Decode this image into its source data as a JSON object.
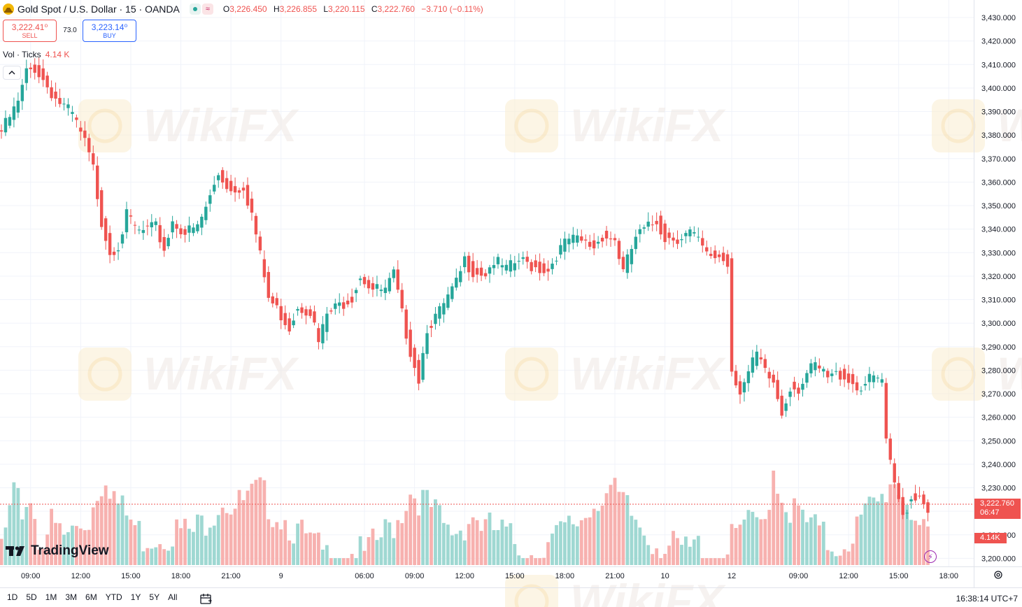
{
  "header": {
    "title": "Gold Spot / U.S. Dollar · 15 · OANDA",
    "ohlc": [
      {
        "key": "O",
        "value": "3,226.450"
      },
      {
        "key": "H",
        "value": "3,226.855"
      },
      {
        "key": "L",
        "value": "3,220.115"
      },
      {
        "key": "C",
        "value": "3,222.760"
      }
    ],
    "change": "−3.710 (−0.11%)"
  },
  "trade": {
    "sell_price": "3,222.41⁰",
    "sell_label": "SELL",
    "buy_price": "3,223.14⁰",
    "buy_label": "BUY",
    "spread": "73.0"
  },
  "volume_legend": {
    "label": "Vol · Ticks",
    "value": "4.14 K"
  },
  "watermark": "WikiFX",
  "logo_text": "TradingView",
  "price_tag": {
    "price": "3,222.760",
    "countdown": "06:47"
  },
  "volume_tag": "4.14K",
  "range_buttons": [
    "1D",
    "5D",
    "1M",
    "3M",
    "6M",
    "YTD",
    "1Y",
    "5Y",
    "All"
  ],
  "clock": "16:38:14 UTC+7",
  "colors": {
    "up": "#26a69a",
    "down": "#ef5350",
    "up_vol": "#9fd8d2",
    "down_vol": "#f7b1af",
    "grid": "#f0f3fa"
  },
  "chart_data": {
    "type": "candlestick",
    "title": "Gold Spot / U.S. Dollar · 15 · OANDA",
    "y_axis": {
      "range": [
        3195,
        3435
      ],
      "ticks": [
        "3,430.000",
        "3,420.000",
        "3,410.000",
        "3,400.000",
        "3,390.000",
        "3,380.000",
        "3,370.000",
        "3,360.000",
        "3,350.000",
        "3,340.000",
        "3,330.000",
        "3,320.000",
        "3,310.000",
        "3,300.000",
        "3,290.000",
        "3,280.000",
        "3,270.000",
        "3,260.000",
        "3,250.000",
        "3,240.000",
        "3,230.000",
        "3,220.000",
        "3,210.000",
        "3,200.000"
      ]
    },
    "x_axis": {
      "ticks": [
        {
          "label": "09:00",
          "bar": 7
        },
        {
          "label": "12:00",
          "bar": 19
        },
        {
          "label": "15:00",
          "bar": 31
        },
        {
          "label": "18:00",
          "bar": 43
        },
        {
          "label": "21:00",
          "bar": 55
        },
        {
          "label": "9",
          "bar": 67
        },
        {
          "label": "06:00",
          "bar": 87
        },
        {
          "label": "09:00",
          "bar": 99
        },
        {
          "label": "12:00",
          "bar": 111
        },
        {
          "label": "15:00",
          "bar": 123
        },
        {
          "label": "18:00",
          "bar": 135
        },
        {
          "label": "21:00",
          "bar": 147
        },
        {
          "label": "10",
          "bar": 159
        },
        {
          "label": "12",
          "bar": 175
        },
        {
          "label": "09:00",
          "bar": 191
        },
        {
          "label": "12:00",
          "bar": 203
        },
        {
          "label": "15:00",
          "bar": 215
        },
        {
          "label": "18:00",
          "bar": 227
        }
      ]
    },
    "close_keypoints": [
      [
        0,
        3383
      ],
      [
        4,
        3395
      ],
      [
        6,
        3408
      ],
      [
        8,
        3410
      ],
      [
        10,
        3405
      ],
      [
        13,
        3397
      ],
      [
        17,
        3390
      ],
      [
        20,
        3378
      ],
      [
        22,
        3367
      ],
      [
        24,
        3345
      ],
      [
        26,
        3332
      ],
      [
        28,
        3335
      ],
      [
        30,
        3347
      ],
      [
        33,
        3340
      ],
      [
        37,
        3342
      ],
      [
        39,
        3333
      ],
      [
        41,
        3345
      ],
      [
        44,
        3340
      ],
      [
        47,
        3342
      ],
      [
        50,
        3355
      ],
      [
        52,
        3365
      ],
      [
        55,
        3358
      ],
      [
        58,
        3360
      ],
      [
        60,
        3348
      ],
      [
        62,
        3330
      ],
      [
        64,
        3312
      ],
      [
        67,
        3305
      ],
      [
        69,
        3300
      ],
      [
        71,
        3309
      ],
      [
        74,
        3307
      ],
      [
        76,
        3293
      ],
      [
        78,
        3305
      ],
      [
        81,
        3309
      ],
      [
        84,
        3313
      ],
      [
        86,
        3322
      ],
      [
        89,
        3316
      ],
      [
        92,
        3315
      ],
      [
        94,
        3322
      ],
      [
        96,
        3305
      ],
      [
        98,
        3290
      ],
      [
        100,
        3278
      ],
      [
        102,
        3300
      ],
      [
        105,
        3306
      ],
      [
        107,
        3312
      ],
      [
        109,
        3318
      ],
      [
        111,
        3328
      ],
      [
        113,
        3324
      ],
      [
        116,
        3323
      ],
      [
        118,
        3328
      ],
      [
        121,
        3324
      ],
      [
        124,
        3328
      ],
      [
        127,
        3326
      ],
      [
        131,
        3324
      ],
      [
        133,
        3331
      ],
      [
        136,
        3337
      ],
      [
        139,
        3336
      ],
      [
        142,
        3334
      ],
      [
        144,
        3339
      ],
      [
        147,
        3337
      ],
      [
        149,
        3323
      ],
      [
        152,
        3338
      ],
      [
        155,
        3342
      ],
      [
        157,
        3345
      ],
      [
        159,
        3338
      ],
      [
        162,
        3338
      ],
      [
        165,
        3340
      ],
      [
        167,
        3336
      ],
      [
        169,
        3330
      ],
      [
        172,
        3330
      ],
      [
        174,
        3327
      ],
      [
        175,
        3282
      ],
      [
        177,
        3273
      ],
      [
        179,
        3280
      ],
      [
        181,
        3288
      ],
      [
        183,
        3280
      ],
      [
        185,
        3276
      ],
      [
        187,
        3263
      ],
      [
        189,
        3275
      ],
      [
        191,
        3274
      ],
      [
        193,
        3280
      ],
      [
        195,
        3283
      ],
      [
        198,
        3278
      ],
      [
        201,
        3280
      ],
      [
        203,
        3278
      ],
      [
        205,
        3274
      ],
      [
        207,
        3276
      ],
      [
        209,
        3278
      ],
      [
        211,
        3277
      ],
      [
        212,
        3250
      ],
      [
        214,
        3232
      ],
      [
        216,
        3220
      ],
      [
        218,
        3227
      ],
      [
        220,
        3229
      ],
      [
        222,
        3223
      ]
    ],
    "volume_keypoints": [
      [
        0,
        1.2
      ],
      [
        3,
        3.2
      ],
      [
        5,
        2.8
      ],
      [
        7,
        3.4
      ],
      [
        9,
        1.5
      ],
      [
        12,
        2.2
      ],
      [
        15,
        1.6
      ],
      [
        18,
        2.0
      ],
      [
        21,
        2.4
      ],
      [
        23,
        3.6
      ],
      [
        25,
        4.4
      ],
      [
        28,
        3.0
      ],
      [
        31,
        2.3
      ],
      [
        34,
        1.6
      ],
      [
        38,
        1.7
      ],
      [
        42,
        1.9
      ],
      [
        46,
        1.8
      ],
      [
        50,
        2.6
      ],
      [
        53,
        3.3
      ],
      [
        56,
        2.9
      ],
      [
        59,
        3.2
      ],
      [
        62,
        3.6
      ],
      [
        65,
        2.8
      ],
      [
        68,
        2.4
      ],
      [
        71,
        1.8
      ],
      [
        75,
        1.2
      ],
      [
        79,
        0.6
      ],
      [
        83,
        1.0
      ],
      [
        87,
        0.8
      ],
      [
        91,
        1.6
      ],
      [
        95,
        2.4
      ],
      [
        98,
        3.6
      ],
      [
        101,
        3.2
      ],
      [
        104,
        2.6
      ],
      [
        107,
        1.8
      ],
      [
        110,
        2.0
      ],
      [
        113,
        2.6
      ],
      [
        116,
        2.0
      ],
      [
        120,
        1.8
      ],
      [
        124,
        1.2
      ],
      [
        128,
        0.8
      ],
      [
        132,
        1.4
      ],
      [
        136,
        2.0
      ],
      [
        140,
        2.6
      ],
      [
        143,
        3.4
      ],
      [
        146,
        3.6
      ],
      [
        149,
        3.0
      ],
      [
        152,
        2.3
      ],
      [
        155,
        1.7
      ],
      [
        158,
        1.3
      ],
      [
        161,
        1.1
      ],
      [
        164,
        1.0
      ],
      [
        167,
        1.2
      ],
      [
        170,
        0.8
      ],
      [
        173,
        0.5
      ],
      [
        175,
        1.4
      ],
      [
        178,
        2.2
      ],
      [
        181,
        2.0
      ],
      [
        183,
        2.4
      ],
      [
        185,
        4.6
      ],
      [
        187,
        3.4
      ],
      [
        189,
        2.8
      ],
      [
        191,
        2.6
      ],
      [
        193,
        2.2
      ],
      [
        196,
        1.8
      ],
      [
        199,
        1.2
      ],
      [
        202,
        1.4
      ],
      [
        205,
        2.0
      ],
      [
        208,
        2.8
      ],
      [
        211,
        3.2
      ],
      [
        213,
        4.1
      ],
      [
        215,
        3.8
      ],
      [
        217,
        3.2
      ],
      [
        219,
        2.6
      ],
      [
        221,
        1.6
      ],
      [
        222,
        1.3
      ]
    ],
    "volume_unit": "K ticks"
  }
}
